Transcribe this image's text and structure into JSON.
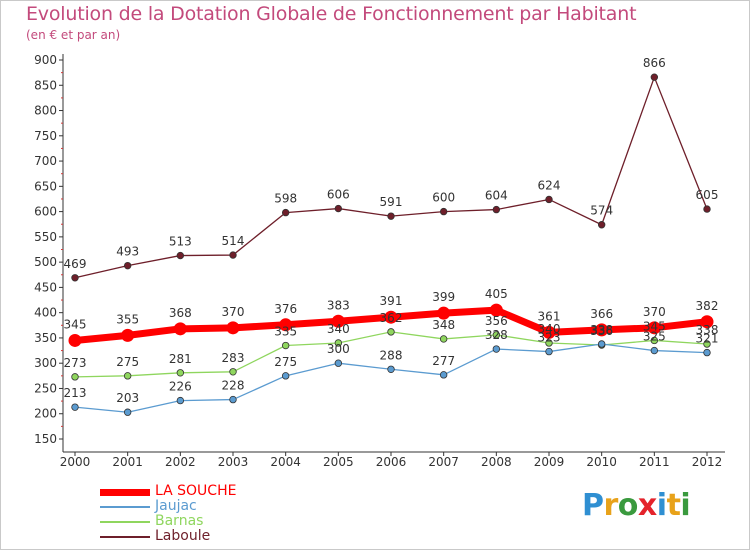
{
  "title": "Evolution de la Dotation Globale de Fonctionnement par Habitant",
  "subtitle": "(en € et par an)",
  "logo": {
    "text": "Proxiti",
    "letters": [
      {
        "ch": "P",
        "color": "#2f8fd2"
      },
      {
        "ch": "r",
        "color": "#e8a21a"
      },
      {
        "ch": "o",
        "color": "#3a9a3e"
      },
      {
        "ch": "x",
        "color": "#e4232b"
      },
      {
        "ch": "i",
        "color": "#2f8fd2"
      },
      {
        "ch": "t",
        "color": "#e8a21a"
      },
      {
        "ch": "i",
        "color": "#3a9a3e"
      }
    ]
  },
  "chart_data": {
    "type": "line",
    "title": "Evolution de la Dotation Globale de Fonctionnement par Habitant",
    "subtitle": "(en € et par an)",
    "x": [
      "2000",
      "2001",
      "2002",
      "2003",
      "2004",
      "2005",
      "2006",
      "2007",
      "2008",
      "2009",
      "2010",
      "2011",
      "2012"
    ],
    "ylim": [
      150,
      900
    ],
    "yticks": [
      150,
      200,
      250,
      300,
      350,
      400,
      450,
      500,
      550,
      600,
      650,
      700,
      750,
      800,
      850,
      900
    ],
    "grid": false,
    "legend_position": "bottom-left",
    "series": [
      {
        "name": "LA SOUCHE",
        "color": "#ff0000",
        "values": [
          345,
          355,
          368,
          370,
          376,
          383,
          391,
          399,
          405,
          361,
          366,
          370,
          382
        ]
      },
      {
        "name": "Jaujac",
        "color": "#5b9bd0",
        "values": [
          213,
          203,
          226,
          228,
          275,
          300,
          288,
          277,
          328,
          323,
          338,
          325,
          321
        ]
      },
      {
        "name": "Barnas",
        "color": "#8fd65e",
        "values": [
          273,
          275,
          281,
          283,
          335,
          340,
          362,
          348,
          356,
          340,
          336,
          345,
          338
        ]
      },
      {
        "name": "Laboule",
        "color": "#6e1f2a",
        "values": [
          469,
          493,
          513,
          514,
          598,
          606,
          591,
          600,
          604,
          624,
          574,
          866,
          605
        ]
      }
    ],
    "value_labels": {
      "LA SOUCHE": [
        "345",
        "355",
        "368",
        "370",
        "376",
        "383",
        "391",
        "399",
        "405",
        "361",
        "366",
        "370",
        "382"
      ],
      "Jaujac": [
        "213",
        "203",
        "226",
        "228",
        "275",
        "300",
        "288",
        "277",
        "328",
        "323",
        "338",
        "325",
        "321"
      ],
      "Barnas": [
        "273",
        "275",
        "281",
        "283",
        "335",
        "340",
        "362",
        "348",
        "356",
        "340",
        "336",
        "345",
        "338"
      ],
      "Laboule": [
        "469",
        "493",
        "513",
        "514",
        "598",
        "606",
        "591",
        "600",
        "604",
        "624",
        "574",
        "866",
        "605"
      ]
    }
  }
}
